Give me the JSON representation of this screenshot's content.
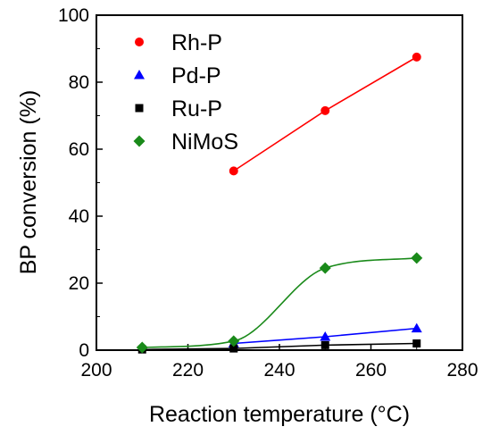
{
  "chart_data": {
    "type": "line",
    "xlabel": "Reaction temperature (°C)",
    "ylabel": "BP conversion (%)",
    "xlim": [
      200,
      280
    ],
    "ylim": [
      0,
      100
    ],
    "xticks": [
      200,
      220,
      240,
      260,
      280
    ],
    "yticks": [
      0,
      20,
      40,
      60,
      80,
      100
    ],
    "x_tick_labels": [
      "200",
      "220",
      "240",
      "260",
      "280"
    ],
    "y_tick_labels": [
      "0",
      "20",
      "40",
      "60",
      "80",
      "100"
    ],
    "grid": false,
    "legend_position": "top-left",
    "series": [
      {
        "name": "Rh-P",
        "marker": "circle",
        "color": "#ff0000",
        "x": [
          230,
          250,
          270
        ],
        "y": [
          53.5,
          71.5,
          87.5
        ],
        "curve": "straight"
      },
      {
        "name": "Pd-P",
        "marker": "triangle",
        "color": "#0000ff",
        "x": [
          230,
          250,
          270
        ],
        "y": [
          2,
          4,
          6.5
        ],
        "curve": "straight"
      },
      {
        "name": "Ru-P",
        "marker": "square",
        "color": "#000000",
        "x": [
          210,
          230,
          250,
          270
        ],
        "y": [
          0.2,
          0.5,
          1.5,
          2.0
        ],
        "curve": "straight"
      },
      {
        "name": "NiMoS",
        "marker": "diamond",
        "color": "#1a8a1a",
        "x": [
          210,
          230,
          250,
          270
        ],
        "y": [
          0.8,
          2.7,
          24.5,
          27.5
        ],
        "curve": "smooth"
      }
    ]
  }
}
